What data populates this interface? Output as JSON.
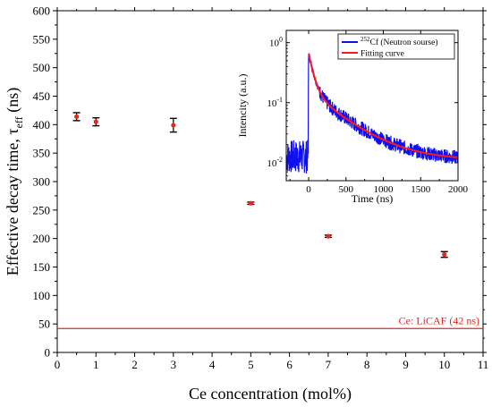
{
  "chart_data": [
    {
      "type": "scatter",
      "xlabel": "Ce concentration (mol%)",
      "ylabel": "Effective decay time, τ",
      "ylabel_sub": "eff",
      "ylabel_unit": " (ns)",
      "xlim": [
        0,
        11
      ],
      "ylim": [
        0,
        600
      ],
      "xticks": [
        0,
        1,
        2,
        3,
        4,
        5,
        6,
        7,
        8,
        9,
        10,
        11
      ],
      "yticks": [
        0,
        50,
        100,
        150,
        200,
        250,
        300,
        350,
        400,
        450,
        500,
        550,
        600
      ],
      "series": [
        {
          "x": [
            0.5,
            1,
            3,
            5,
            7,
            10
          ],
          "y": [
            414,
            405,
            399,
            262,
            204,
            172
          ],
          "yerr": [
            7,
            7,
            12,
            2,
            2,
            5
          ],
          "marker_color": "#e8251f",
          "errorbar_color": "#000000"
        }
      ],
      "reference_line": {
        "y": 42,
        "label": "Ce: LiCAF (42 ns)",
        "color": "#e8251f"
      }
    },
    {
      "type": "line",
      "xlabel": "Time (ns)",
      "ylabel": "Intencity (a.u.)",
      "xlim": [
        -300,
        2000
      ],
      "ylim": [
        0.005,
        1.6
      ],
      "yscale": "log",
      "xticks": [
        0,
        500,
        1000,
        1500,
        2000
      ],
      "yticks": [
        {
          "base": "10",
          "exp": "-2",
          "value": 0.01
        },
        {
          "base": "10",
          "exp": "-1",
          "value": 0.1
        },
        {
          "base": "10",
          "exp": "0",
          "value": 1
        }
      ],
      "series": [
        {
          "name_sup": "252",
          "name": "Cf (Neutron sourse)",
          "color": "#1010ee"
        },
        {
          "name": "Fitting curve",
          "color": "#ff1a1a"
        }
      ],
      "legend_position": "top-right"
    }
  ]
}
